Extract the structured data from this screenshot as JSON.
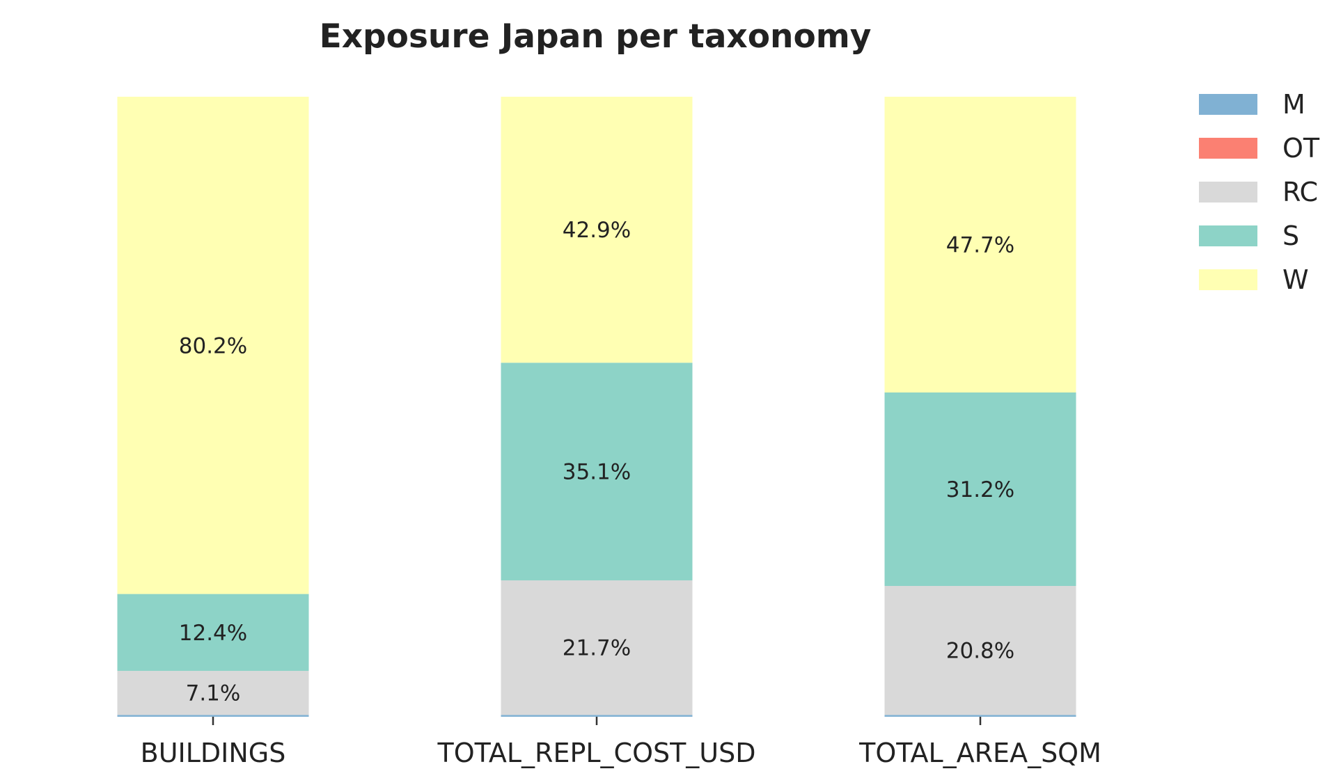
{
  "chart_data": {
    "type": "bar",
    "stacked": true,
    "normalized": true,
    "title": "Exposure Japan per taxonomy",
    "xlabel": "",
    "ylabel": "",
    "ylim": [
      0,
      100
    ],
    "grid": false,
    "legend_position": "top-right",
    "categories": [
      "BUILDINGS",
      "TOTAL_REPL_COST_USD",
      "TOTAL_AREA_SQM"
    ],
    "series": [
      {
        "name": "M",
        "color": "#80b1d3",
        "values": [
          0.3,
          0.3,
          0.3
        ]
      },
      {
        "name": "OT",
        "color": "#fb8072",
        "values": [
          0.0,
          0.0,
          0.0
        ]
      },
      {
        "name": "RC",
        "color": "#d9d9d9",
        "values": [
          7.1,
          21.7,
          20.8
        ]
      },
      {
        "name": "S",
        "color": "#8dd3c7",
        "values": [
          12.4,
          35.1,
          31.2
        ]
      },
      {
        "name": "W",
        "color": "#ffffb3",
        "values": [
          80.2,
          42.9,
          47.7
        ]
      }
    ],
    "data_labels": [
      [
        "",
        "",
        "7.1%",
        "12.4%",
        "80.2%"
      ],
      [
        "",
        "",
        "21.7%",
        "35.1%",
        "42.9%"
      ],
      [
        "",
        "",
        "20.8%",
        "31.2%",
        "47.7%"
      ]
    ]
  }
}
